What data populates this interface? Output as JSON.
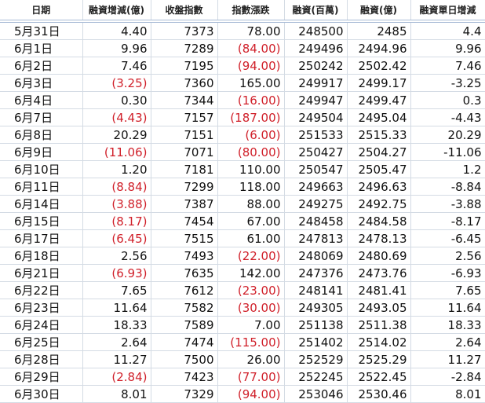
{
  "columns": [
    "日期",
    "融資增減(億)",
    "收盤指數",
    "指數漲跌",
    "融資(百萬)",
    "融資(億)",
    "融資單日增減"
  ],
  "negative_color": "#d0202a",
  "rows": [
    [
      "5月31日",
      "4.40",
      "7373",
      "78.00",
      "248500",
      "2485",
      "4.4"
    ],
    [
      "6月1日",
      "9.96",
      "7289",
      "(84.00)",
      "249496",
      "2494.96",
      "9.96"
    ],
    [
      "6月2日",
      "7.46",
      "7195",
      "(94.00)",
      "250242",
      "2502.42",
      "7.46"
    ],
    [
      "6月3日",
      "(3.25)",
      "7360",
      "165.00",
      "249917",
      "2499.17",
      "-3.25"
    ],
    [
      "6月4日",
      "0.30",
      "7344",
      "(16.00)",
      "249947",
      "2499.47",
      "0.3"
    ],
    [
      "6月7日",
      "(4.43)",
      "7157",
      "(187.00)",
      "249504",
      "2495.04",
      "-4.43"
    ],
    [
      "6月8日",
      "20.29",
      "7151",
      "(6.00)",
      "251533",
      "2515.33",
      "20.29"
    ],
    [
      "6月9日",
      "(11.06)",
      "7071",
      "(80.00)",
      "250427",
      "2504.27",
      "-11.06"
    ],
    [
      "6月10日",
      "1.20",
      "7181",
      "110.00",
      "250547",
      "2505.47",
      "1.2"
    ],
    [
      "6月11日",
      "(8.84)",
      "7299",
      "118.00",
      "249663",
      "2496.63",
      "-8.84"
    ],
    [
      "6月14日",
      "(3.88)",
      "7387",
      "88.00",
      "249275",
      "2492.75",
      "-3.88"
    ],
    [
      "6月15日",
      "(8.17)",
      "7454",
      "67.00",
      "248458",
      "2484.58",
      "-8.17"
    ],
    [
      "6月17日",
      "(6.45)",
      "7515",
      "61.00",
      "247813",
      "2478.13",
      "-6.45"
    ],
    [
      "6月18日",
      "2.56",
      "7493",
      "(22.00)",
      "248069",
      "2480.69",
      "2.56"
    ],
    [
      "6月21日",
      "(6.93)",
      "7635",
      "142.00",
      "247376",
      "2473.76",
      "-6.93"
    ],
    [
      "6月22日",
      "7.65",
      "7612",
      "(23.00)",
      "248141",
      "2481.41",
      "7.65"
    ],
    [
      "6月23日",
      "11.64",
      "7582",
      "(30.00)",
      "249305",
      "2493.05",
      "11.64"
    ],
    [
      "6月24日",
      "18.33",
      "7589",
      "7.00",
      "251138",
      "2511.38",
      "18.33"
    ],
    [
      "6月25日",
      "2.64",
      "7474",
      "(115.00)",
      "251402",
      "2514.02",
      "2.64"
    ],
    [
      "6月28日",
      "11.27",
      "7500",
      "26.00",
      "252529",
      "2525.29",
      "11.27"
    ],
    [
      "6月29日",
      "(2.84)",
      "7423",
      "(77.00)",
      "252245",
      "2522.45",
      "-2.84"
    ],
    [
      "6月30日",
      "8.01",
      "7329",
      "(94.00)",
      "253046",
      "2530.46",
      "8.01"
    ]
  ]
}
